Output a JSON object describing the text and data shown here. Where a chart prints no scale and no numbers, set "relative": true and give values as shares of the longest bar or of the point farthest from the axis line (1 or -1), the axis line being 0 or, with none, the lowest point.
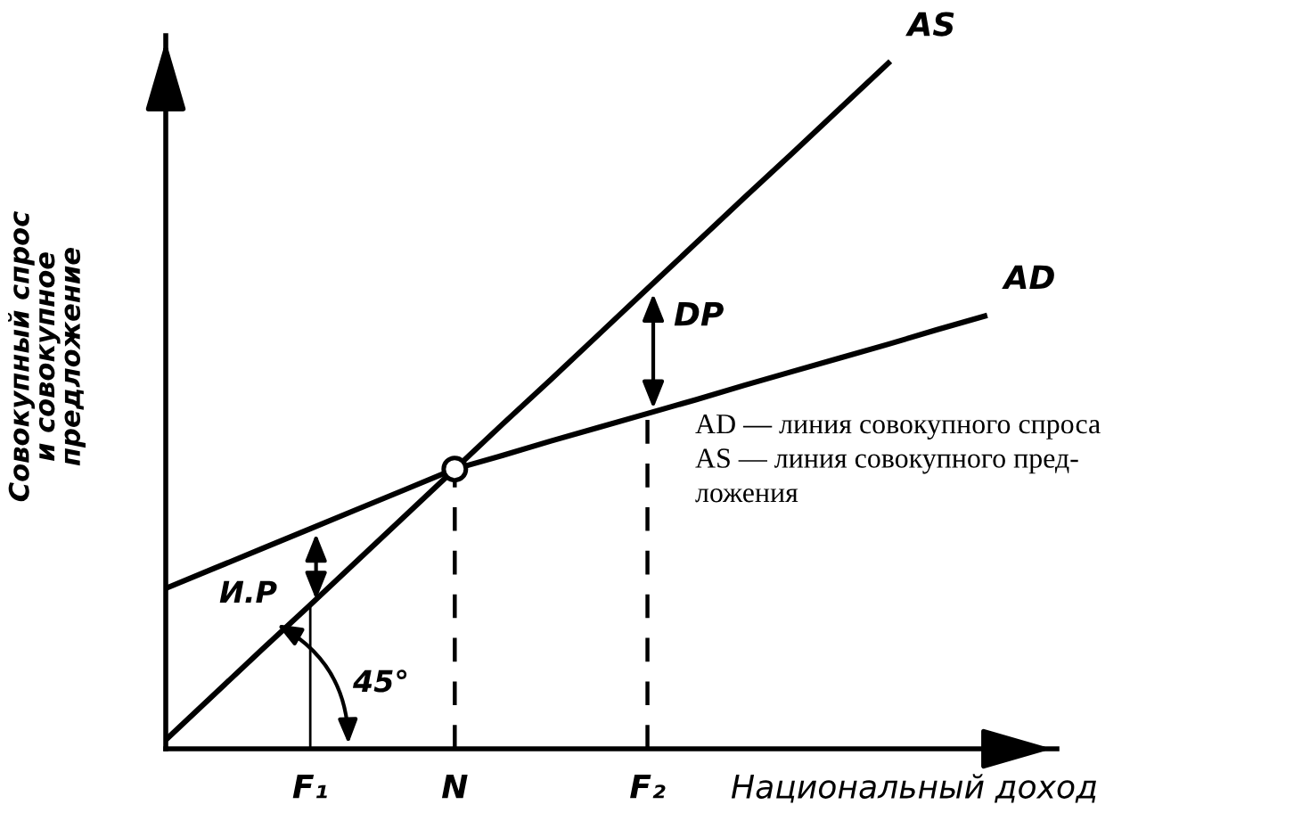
{
  "chart_data": {
    "type": "line",
    "relative": true,
    "ylabel": "Совокупный спрос\nи совокупное\nпредложение",
    "xlabel": "Национальный доход",
    "categories": [
      null,
      null,
      null,
      "F₁",
      null,
      null,
      "N",
      null,
      null,
      null,
      "F₂",
      null,
      null,
      null,
      null,
      null,
      null,
      null
    ],
    "grid": false,
    "marker": "none",
    "line_style": "solid",
    "series": [
      {
        "name": "AS",
        "color": "#000000",
        "values": [
          0.013,
          0.079,
          0.145,
          0.21,
          0.276,
          0.342,
          0.408,
          0.474,
          0.539,
          0.605,
          0.671,
          0.737,
          0.803,
          0.868,
          0.934,
          1.0,
          null,
          null
        ]
      },
      {
        "name": "AD",
        "color": "#000000",
        "values": [
          0.234,
          0.263,
          0.292,
          0.321,
          0.35,
          0.379,
          0.408,
          0.428,
          0.449,
          0.469,
          0.489,
          0.509,
          0.53,
          0.55,
          0.57,
          0.59,
          0.611,
          0.631
        ]
      }
    ],
    "ref_lines": [
      {
        "axis": "x",
        "value": "F₁",
        "line_style": "solid"
      },
      {
        "axis": "x",
        "value": "N",
        "line_style": "dashed"
      },
      {
        "axis": "x",
        "value": "F₂",
        "line_style": "dashed"
      }
    ],
    "annotations": [
      "DP",
      "И.Р",
      "45°",
      "AD — линия совокупного спроса",
      "AS — линия совокупного пред-",
      "ложения"
    ]
  }
}
